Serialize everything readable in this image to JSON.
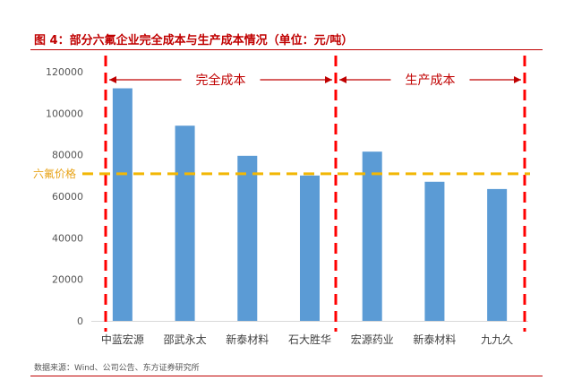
{
  "title": "图 4：部分六氟企业完全成本与生产成本情况（单位：元/吨）",
  "source": "数据来源：Wind、公司公告、东方证券研究所",
  "chart_data": {
    "type": "bar",
    "categories": [
      "中蓝宏源",
      "邵武永太",
      "新泰材料",
      "石大胜华",
      "宏源药业",
      "新泰材料",
      "九九久"
    ],
    "values": [
      112000,
      94000,
      79500,
      70000,
      81500,
      67000,
      63500
    ],
    "ylim": [
      0,
      120000
    ],
    "yticks": [
      0,
      20000,
      40000,
      60000,
      80000,
      100000,
      120000
    ],
    "bar_color": "#5b9bd5",
    "reference_line": {
      "label": "六氟价格",
      "value": 70000,
      "color": "#f2b705"
    },
    "segments": [
      {
        "label": "完全成本",
        "from": 0,
        "to": 3
      },
      {
        "label": "生产成本",
        "from": 4,
        "to": 6
      }
    ],
    "divider_color": "#ff0000",
    "grid": false
  }
}
